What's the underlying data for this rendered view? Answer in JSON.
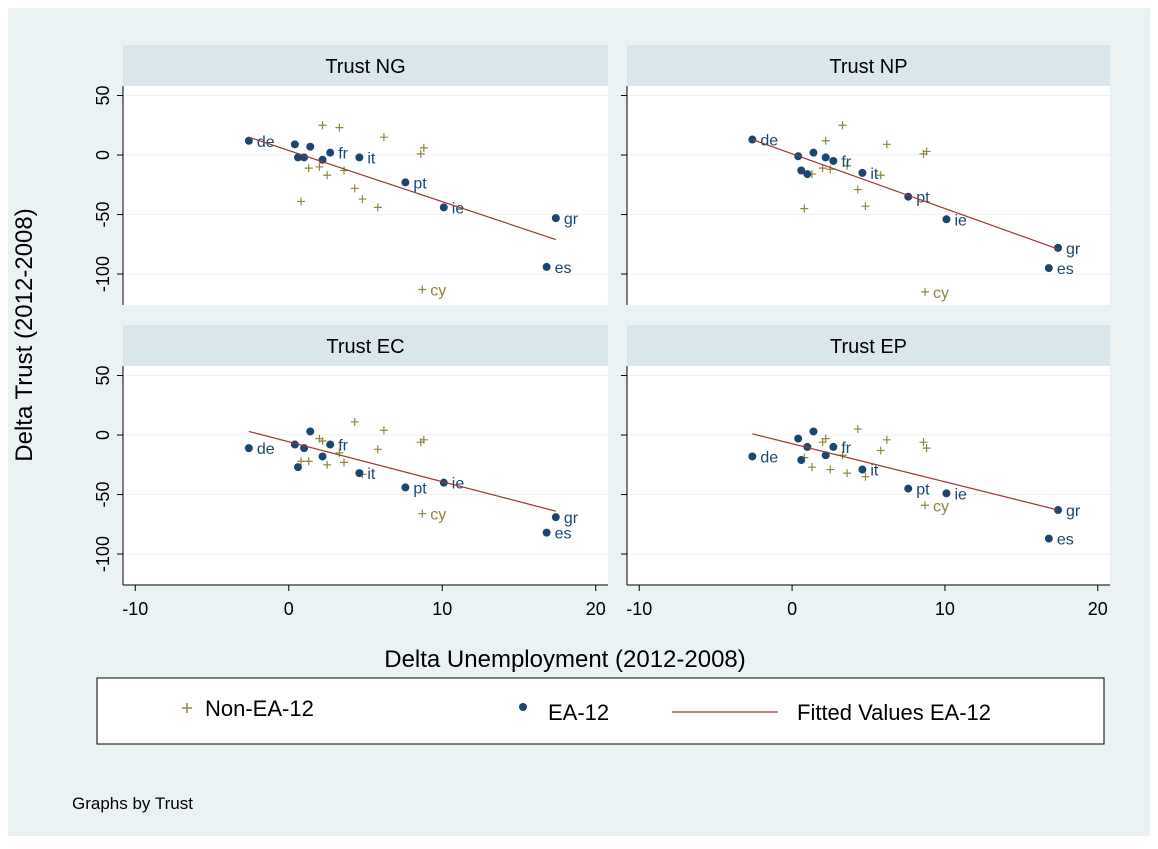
{
  "chart_data": {
    "type": "scatter",
    "ylabel": "Delta Trust (2012-2008)",
    "xlabel": "Delta Unemployment (2012-2008)",
    "note": "Graphs by Trust",
    "xlim": [
      -10.8,
      20.8
    ],
    "ylim": [
      -126,
      58
    ],
    "xticks": [
      -10,
      0,
      10,
      20
    ],
    "yticks": [
      -100,
      -50,
      0,
      50
    ],
    "grid": true,
    "series": [
      {
        "name": "Non-EA-12",
        "color": "#90853c",
        "x": [
          0.8,
          1.3,
          2.0,
          2.2,
          2.5,
          3.3,
          3.6,
          4.3,
          4.8,
          5.8,
          6.2,
          8.6,
          8.8,
          8.7
        ],
        "labels": [
          null,
          null,
          null,
          null,
          null,
          null,
          null,
          null,
          null,
          null,
          null,
          null,
          null,
          "cy"
        ]
      },
      {
        "name": "EA-12",
        "color": "#1a476f",
        "x": [
          -2.6,
          0.4,
          0.6,
          1.0,
          1.4,
          2.2,
          2.7,
          4.6,
          7.6,
          10.1,
          16.8,
          17.4
        ],
        "labels": [
          "de",
          null,
          null,
          null,
          null,
          null,
          "fr",
          "it",
          "pt",
          "ie",
          "es",
          "gr"
        ]
      },
      {
        "name": "Fitted Values EA-12",
        "color": "#a0352b",
        "x": [
          -2.6,
          17.4
        ]
      }
    ],
    "panels": [
      {
        "title": "Trust NG",
        "values": [
          [
            -39,
            -11,
            -10,
            25,
            -17,
            23,
            -13,
            -28,
            -37,
            -44,
            15,
            1,
            6,
            -113
          ],
          [
            12,
            9,
            -2,
            -2,
            7,
            -4,
            2,
            -2,
            -23,
            -44,
            -94,
            -53
          ],
          [
            15,
            -71
          ]
        ]
      },
      {
        "title": "Trust NP",
        "values": [
          [
            -45,
            -16,
            -11,
            12,
            -12,
            25,
            -9,
            -29,
            -43,
            -17,
            9,
            1,
            3,
            -115
          ],
          [
            13,
            -1,
            -13,
            -16,
            2,
            -2,
            -5,
            -15,
            -35,
            -54,
            -95,
            -78
          ],
          [
            13,
            -79
          ]
        ]
      },
      {
        "title": "Trust EC",
        "values": [
          [
            -22,
            -22,
            -3,
            -5,
            -25,
            -15,
            -23,
            11,
            -33,
            -12,
            4,
            -6,
            -4,
            -66
          ],
          [
            -11,
            -8,
            -27,
            -11,
            3,
            -18,
            -8,
            -32,
            -44,
            -40,
            -82,
            -69
          ],
          [
            3,
            -64
          ]
        ]
      },
      {
        "title": "Trust EP",
        "values": [
          [
            -19,
            -27,
            -6,
            -3,
            -29,
            -17,
            -32,
            5,
            -35,
            -13,
            -4,
            -6,
            -11,
            -59
          ],
          [
            -18,
            -3,
            -21,
            -10,
            3,
            -17,
            -10,
            -29,
            -45,
            -49,
            -87,
            -63
          ],
          [
            1,
            -63
          ]
        ]
      }
    ]
  }
}
